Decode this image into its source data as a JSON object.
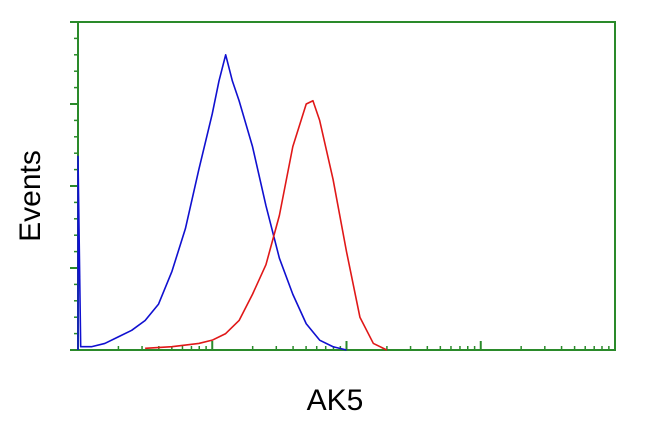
{
  "chart_data": {
    "type": "line",
    "x_label": "AK5",
    "y_label": "Events",
    "xlim": [
      0,
      4
    ],
    "xticks": [
      0,
      1,
      2,
      3,
      4
    ],
    "ylim": [
      0,
      100
    ],
    "yticks": [
      0,
      25,
      50,
      75,
      100
    ],
    "axis_color": "#2a8a2a",
    "series": [
      {
        "color": "#1010d0",
        "x": [
          0,
          0,
          0.02,
          0.1,
          0.2,
          0.3,
          0.4,
          0.5,
          0.6,
          0.7,
          0.8,
          0.9,
          1.0,
          1.05,
          1.1,
          1.15,
          1.2,
          1.3,
          1.4,
          1.5,
          1.6,
          1.7,
          1.8,
          1.9,
          2.0
        ],
        "values": [
          0,
          59,
          1,
          1,
          2,
          4,
          6,
          9,
          14,
          24,
          37,
          55,
          72,
          82,
          90,
          82,
          76,
          62,
          44,
          28,
          17,
          8,
          3,
          1,
          0
        ]
      },
      {
        "color": "#e01818",
        "x": [
          0.5,
          0.7,
          0.9,
          1.0,
          1.1,
          1.2,
          1.3,
          1.4,
          1.5,
          1.6,
          1.7,
          1.75,
          1.8,
          1.9,
          2.0,
          2.1,
          2.2,
          2.3
        ],
        "values": [
          0.5,
          1,
          2,
          3,
          5,
          9,
          17,
          26,
          41,
          62,
          75,
          76,
          70,
          52,
          30,
          10,
          2,
          0
        ]
      }
    ]
  }
}
